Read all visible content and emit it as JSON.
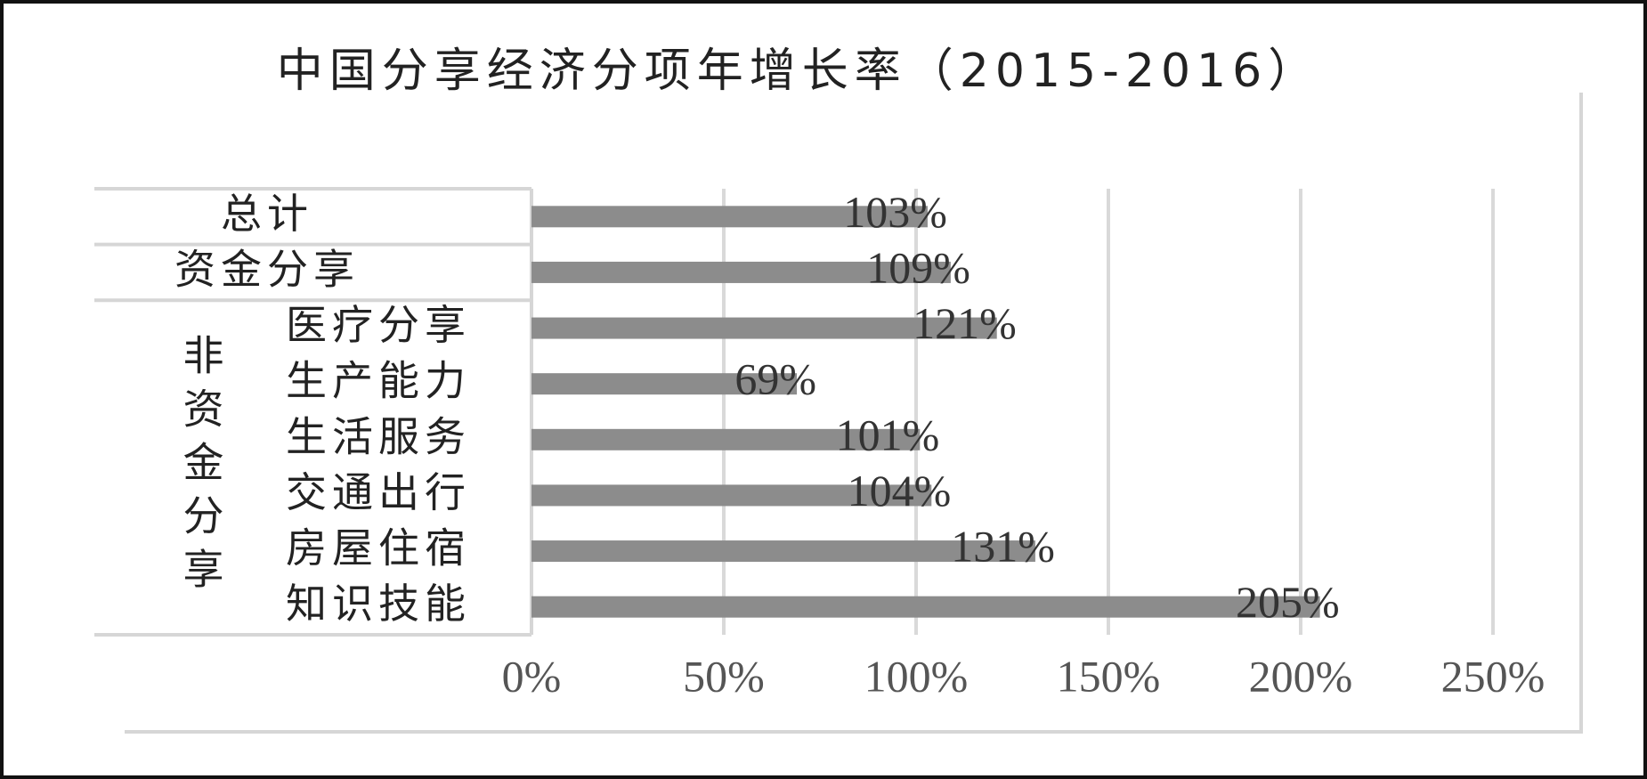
{
  "chart_data": {
    "type": "bar",
    "orientation": "horizontal",
    "title": "中国分享经济分项年增长率（2015-2016）",
    "categories": [
      "总计",
      "资金分享",
      "医疗分享",
      "生产能力",
      "生活服务",
      "交通出行",
      "房屋住宿",
      "知识技能"
    ],
    "category_group": {
      "label": "非资金分享",
      "first": 2,
      "last": 7
    },
    "values": [
      103,
      109,
      121,
      69,
      101,
      104,
      131,
      205
    ],
    "value_labels": [
      "103%",
      "109%",
      "121%",
      "69%",
      "101%",
      "104%",
      "131%",
      "205%"
    ],
    "color": "#8c8c8c",
    "xlim": [
      0,
      250
    ],
    "xticks": [
      {
        "value": 0,
        "label": "0%"
      },
      {
        "value": 50,
        "label": "50%"
      },
      {
        "value": 100,
        "label": "100%"
      },
      {
        "value": 150,
        "label": "150%"
      },
      {
        "value": 200,
        "label": "200%"
      },
      {
        "value": 250,
        "label": "250%"
      }
    ],
    "grid": true
  }
}
